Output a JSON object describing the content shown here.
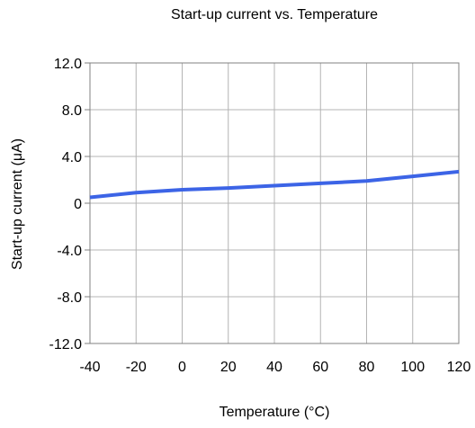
{
  "chart_data": {
    "type": "line",
    "title": "Start-up current vs. Temperature",
    "xlabel": "Temperature (°C)",
    "ylabel": "Start-up current  (μA)",
    "xlim": [
      -40,
      120
    ],
    "ylim": [
      -12,
      12
    ],
    "x_ticks": [
      "-40",
      "-20",
      "0",
      "20",
      "40",
      "60",
      "80",
      "100",
      "120"
    ],
    "y_ticks": [
      "12.0",
      "8.0",
      "4.0",
      "0",
      "-4.0",
      "-8.0",
      "-12.0"
    ],
    "x_tick_values": [
      -40,
      -20,
      0,
      20,
      40,
      60,
      80,
      100,
      120
    ],
    "y_tick_values": [
      12,
      8,
      4,
      0,
      -4,
      -8,
      -12
    ],
    "grid": true,
    "series": [
      {
        "color": "#3c64e6",
        "x": [
          -40,
          -20,
          0,
          20,
          40,
          60,
          80,
          100,
          120
        ],
        "y": [
          0.5,
          0.9,
          1.15,
          1.3,
          1.5,
          1.7,
          1.9,
          2.3,
          2.7
        ]
      }
    ]
  }
}
